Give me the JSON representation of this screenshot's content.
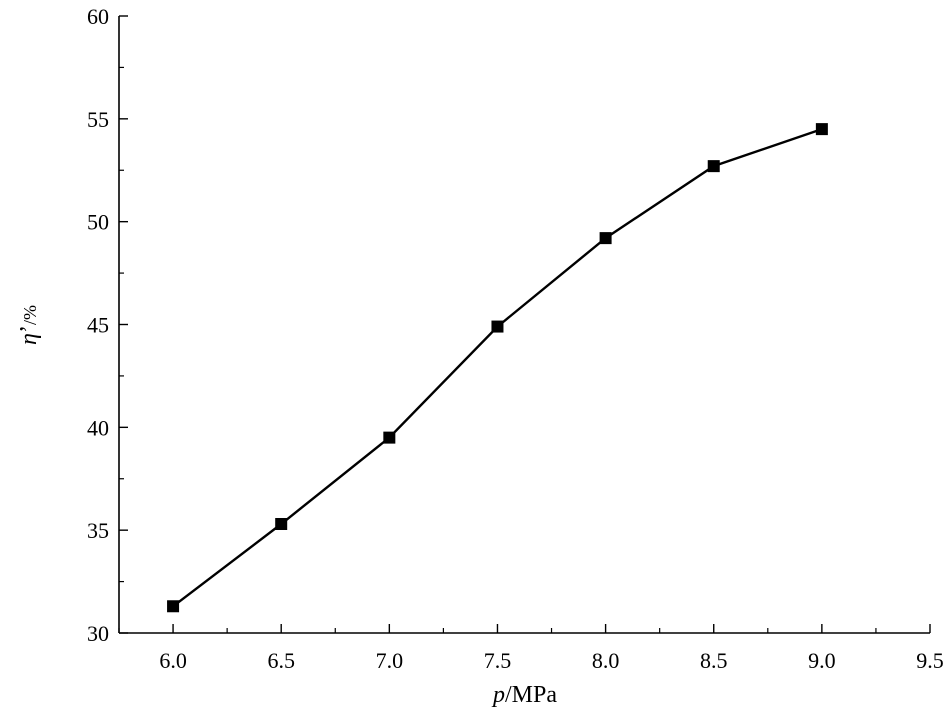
{
  "chart_data": {
    "type": "line",
    "title": "",
    "xlabel_var": "p",
    "xlabel_unit": "/MPa",
    "ylabel_var": "η",
    "ylabel_prime": "’",
    "ylabel_unit": "/%",
    "xlim": [
      5.75,
      9.5
    ],
    "ylim": [
      30,
      60
    ],
    "xticks": [
      6.0,
      6.5,
      7.0,
      7.5,
      8.0,
      8.5,
      9.0,
      9.5
    ],
    "xtick_labels": [
      "6.0",
      "6.5",
      "7.0",
      "7.5",
      "8.0",
      "8.5",
      "9.0",
      "9.5"
    ],
    "yticks": [
      30,
      35,
      40,
      45,
      50,
      55,
      60
    ],
    "ytick_labels": [
      "30",
      "35",
      "40",
      "45",
      "50",
      "55",
      "60"
    ],
    "grid": false,
    "series": [
      {
        "color": "#000000",
        "marker": "square",
        "x": [
          6.0,
          6.5,
          7.0,
          7.5,
          8.0,
          8.5,
          9.0
        ],
        "y": [
          31.3,
          35.3,
          39.5,
          44.9,
          49.2,
          52.7,
          54.5
        ]
      }
    ]
  }
}
